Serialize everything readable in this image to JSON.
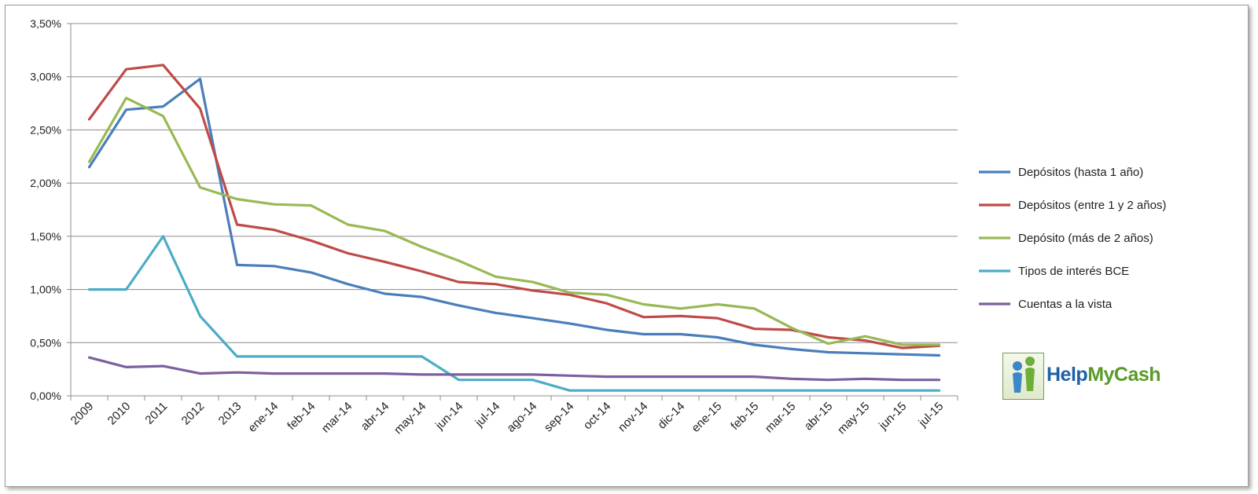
{
  "chart_data": {
    "type": "line",
    "title": "",
    "xlabel": "",
    "ylabel": "",
    "ylim": [
      0,
      3.5
    ],
    "ytick_values": [
      0,
      0.5,
      1.0,
      1.5,
      2.0,
      2.5,
      3.0,
      3.5
    ],
    "ytick_labels": [
      "0,00%",
      "0,50%",
      "1,00%",
      "1,50%",
      "2,00%",
      "2,50%",
      "3,00%",
      "3,50%"
    ],
    "grid": "horizontal",
    "legend_position": "right",
    "categories": [
      "2009",
      "2010",
      "2011",
      "2012",
      "2013",
      "ene-14",
      "feb-14",
      "mar-14",
      "abr-14",
      "may-14",
      "jun-14",
      "jul-14",
      "ago-14",
      "sep-14",
      "oct-14",
      "nov-14",
      "dic-14",
      "ene-15",
      "feb-15",
      "mar-15",
      "abr-15",
      "may-15",
      "jun-15",
      "jul-15"
    ],
    "series": [
      {
        "name": "Depósitos (hasta 1 año)",
        "color": "#4a7ebb",
        "values": [
          2.15,
          2.69,
          2.72,
          2.98,
          1.23,
          1.22,
          1.16,
          1.05,
          0.96,
          0.93,
          0.85,
          0.78,
          0.73,
          0.68,
          0.62,
          0.58,
          0.58,
          0.55,
          0.48,
          0.44,
          0.41,
          0.4,
          0.39,
          0.38
        ]
      },
      {
        "name": "Depósitos (entre 1 y 2 años)",
        "color": "#be4b48",
        "values": [
          2.6,
          3.07,
          3.11,
          2.7,
          1.61,
          1.56,
          1.46,
          1.34,
          1.26,
          1.17,
          1.07,
          1.05,
          0.99,
          0.95,
          0.87,
          0.74,
          0.75,
          0.73,
          0.63,
          0.62,
          0.55,
          0.52,
          0.45,
          0.47
        ]
      },
      {
        "name": "Depósito (más de 2 años)",
        "color": "#98b954",
        "values": [
          2.2,
          2.8,
          2.63,
          1.96,
          1.85,
          1.8,
          1.79,
          1.61,
          1.55,
          1.4,
          1.27,
          1.12,
          1.07,
          0.97,
          0.95,
          0.86,
          0.82,
          0.86,
          0.82,
          0.64,
          0.49,
          0.56,
          0.48,
          0.48
        ]
      },
      {
        "name": "Tipos de interés BCE",
        "color": "#4bacc6",
        "values": [
          1.0,
          1.0,
          1.5,
          0.75,
          0.37,
          0.37,
          0.37,
          0.37,
          0.37,
          0.37,
          0.15,
          0.15,
          0.15,
          0.05,
          0.05,
          0.05,
          0.05,
          0.05,
          0.05,
          0.05,
          0.05,
          0.05,
          0.05,
          0.05
        ]
      },
      {
        "name": "Cuentas a la vista",
        "color": "#7d5fa0",
        "values": [
          0.36,
          0.27,
          0.28,
          0.21,
          0.22,
          0.21,
          0.21,
          0.21,
          0.21,
          0.2,
          0.2,
          0.2,
          0.2,
          0.19,
          0.18,
          0.18,
          0.18,
          0.18,
          0.18,
          0.16,
          0.15,
          0.16,
          0.15,
          0.15
        ]
      }
    ]
  },
  "logo": {
    "text_part1": "Help",
    "text_part2": "MyCash"
  }
}
